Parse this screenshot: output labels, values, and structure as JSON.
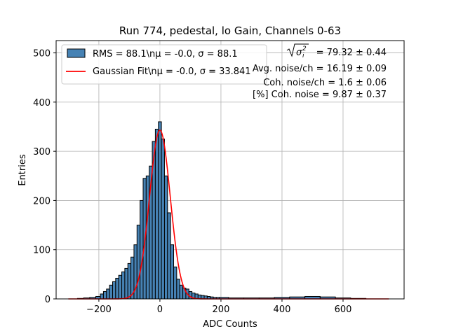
{
  "chart_data": {
    "type": "bar",
    "title": "Run 774, pedestal, lo Gain, Channels 0-63",
    "xlabel": "ADC Counts",
    "ylabel": "Entries",
    "xlim": [
      -340,
      800
    ],
    "ylim": [
      0,
      525
    ],
    "xticks": [
      -200,
      0,
      200,
      400,
      600
    ],
    "yticks": [
      0,
      100,
      200,
      300,
      400,
      500
    ],
    "grid": true,
    "legend": "top-left",
    "histogram": {
      "name": "RMS = 88.1\\nμ = -0.0, σ = 88.1",
      "color": "#4682b4",
      "edge_color": "#000000",
      "bin_centers": [
        -300,
        -280,
        -260,
        -240,
        -220,
        -200,
        -190,
        -180,
        -170,
        -160,
        -150,
        -140,
        -130,
        -120,
        -110,
        -100,
        -90,
        -80,
        -70,
        -60,
        -50,
        -40,
        -30,
        -20,
        -10,
        0,
        10,
        20,
        30,
        40,
        50,
        60,
        70,
        80,
        90,
        100,
        110,
        120,
        130,
        140,
        150,
        160,
        170,
        180,
        190,
        200,
        250,
        300,
        350,
        400,
        450,
        500,
        550,
        600,
        650,
        700
      ],
      "counts": [
        0,
        0,
        1,
        2,
        3,
        5,
        10,
        15,
        20,
        28,
        35,
        42,
        48,
        55,
        62,
        72,
        85,
        110,
        150,
        200,
        245,
        250,
        270,
        320,
        345,
        360,
        325,
        250,
        175,
        110,
        65,
        40,
        28,
        22,
        20,
        15,
        12,
        10,
        8,
        7,
        6,
        5,
        4,
        3,
        3,
        3,
        2,
        2,
        2,
        3,
        4,
        5,
        4,
        2,
        1,
        0
      ]
    },
    "fit": {
      "name": "Gaussian Fit\\nμ = -0.0, σ = 33.841",
      "color": "#ff0000",
      "mu": 0.0,
      "sigma": 33.841,
      "amplitude": 343,
      "x_range": [
        -300,
        750
      ]
    },
    "annotations": {
      "line1_value": "= 79.32 ± 0.44",
      "line2": "Avg. noise/ch = 16.19 ± 0.09",
      "line3": "Coh. noise/ch = 1.6 ± 0.06",
      "line4": "[%] Coh. noise = 9.87 ± 0.37"
    }
  }
}
